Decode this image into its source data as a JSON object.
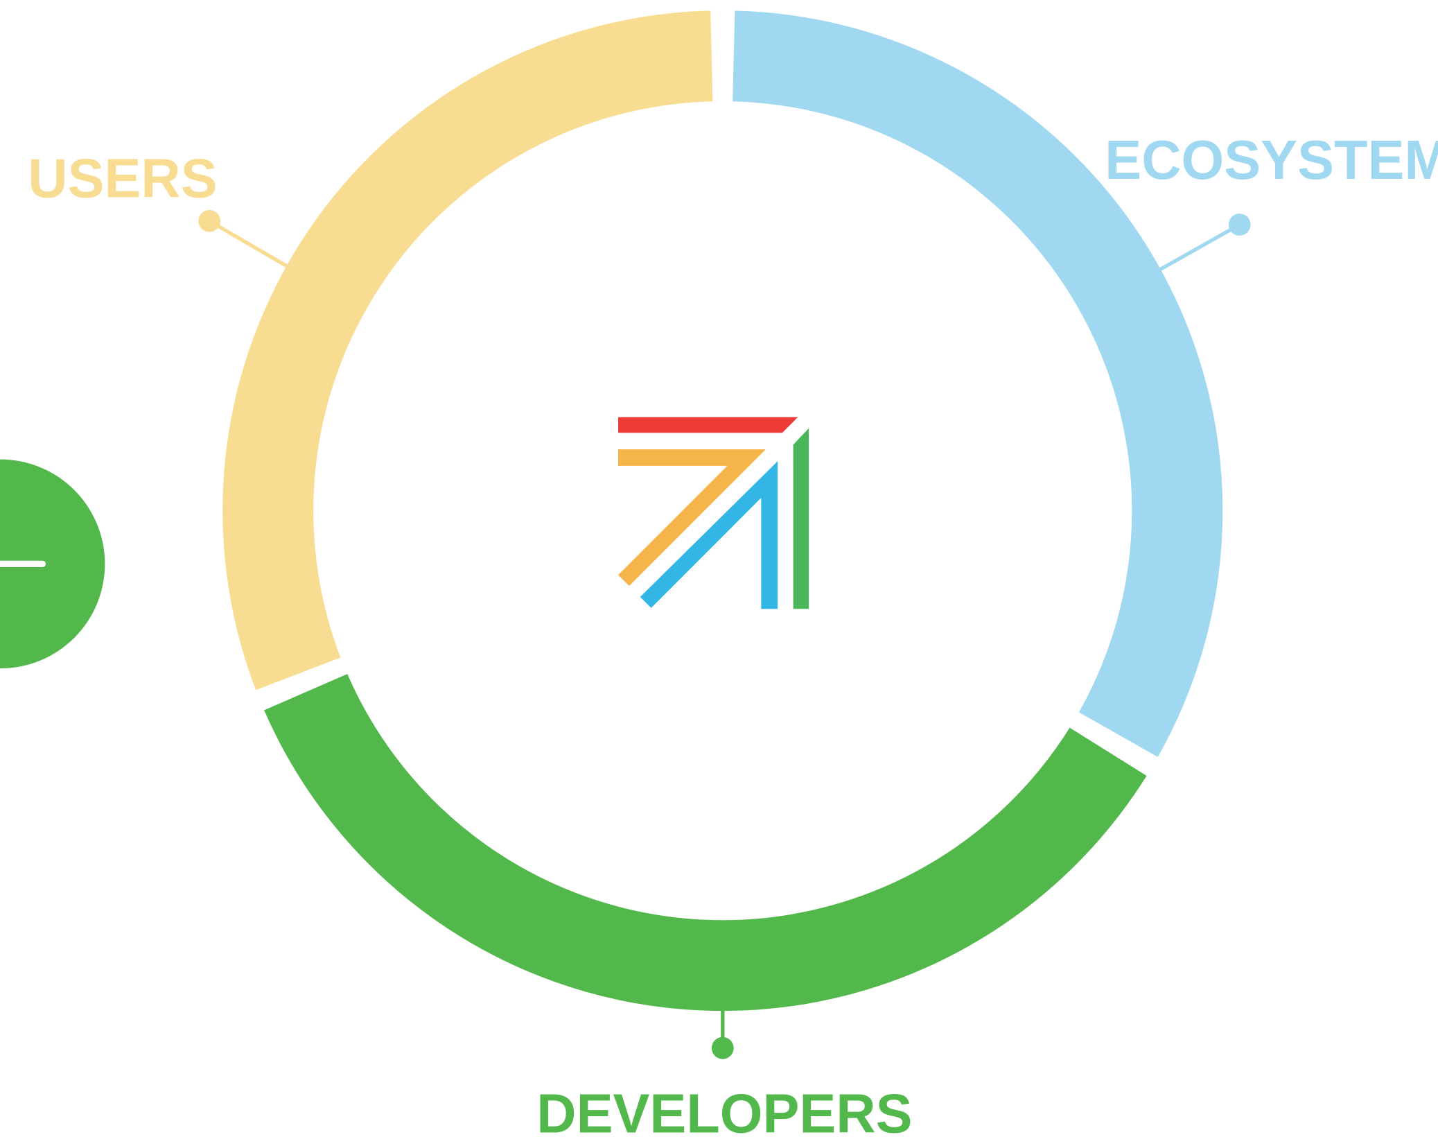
{
  "labels": {
    "users": "USERS",
    "ecosystem": "ECOSYSTEM",
    "developers": "DEVELOPERS"
  }
}
